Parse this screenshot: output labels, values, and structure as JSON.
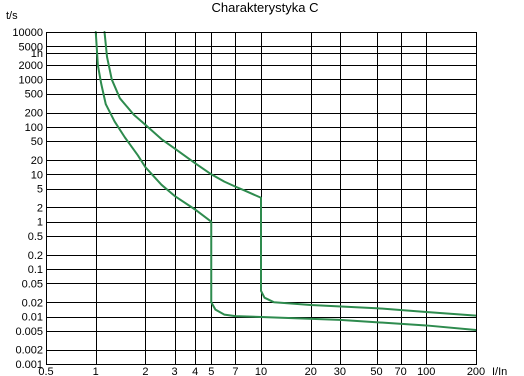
{
  "chart_data": {
    "type": "line",
    "title": "Charakterystyka C",
    "ylabel": "t/s",
    "xlabel": "I/In",
    "x_scale": "log",
    "y_scale": "log",
    "xlim": [
      0.5,
      200
    ],
    "ylim": [
      0.001,
      10000
    ],
    "grid": true,
    "legend": "none",
    "line_color": "#2e8b4e",
    "x_gridlines": [
      0.5,
      1,
      2,
      3,
      4,
      5,
      7,
      10,
      20,
      30,
      50,
      70,
      100,
      200
    ],
    "y_gridlines": [
      0.001,
      0.002,
      0.005,
      0.01,
      0.02,
      0.05,
      0.1,
      0.2,
      0.5,
      1,
      2,
      5,
      10,
      20,
      50,
      100,
      200,
      500,
      1000,
      2000,
      3600,
      5000,
      10000
    ],
    "x_ticks": [
      {
        "value": 0.5,
        "label": "0.5"
      },
      {
        "value": 1,
        "label": "1"
      },
      {
        "value": 2,
        "label": "2"
      },
      {
        "value": 3,
        "label": "3"
      },
      {
        "value": 4,
        "label": "4"
      },
      {
        "value": 5,
        "label": "5"
      },
      {
        "value": 7,
        "label": "7"
      },
      {
        "value": 10,
        "label": "10"
      },
      {
        "value": 20,
        "label": "20"
      },
      {
        "value": 30,
        "label": "30"
      },
      {
        "value": 50,
        "label": "50"
      },
      {
        "value": 70,
        "label": "70"
      },
      {
        "value": 100,
        "label": "100"
      },
      {
        "value": 200,
        "label": "200"
      }
    ],
    "y_ticks": [
      {
        "value": 10000,
        "label": "10000"
      },
      {
        "value": 5000,
        "label": "5000"
      },
      {
        "value": 3600,
        "label": "1h"
      },
      {
        "value": 2000,
        "label": "2000"
      },
      {
        "value": 1000,
        "label": "1000"
      },
      {
        "value": 500,
        "label": "500"
      },
      {
        "value": 200,
        "label": "200"
      },
      {
        "value": 100,
        "label": "100"
      },
      {
        "value": 50,
        "label": "50"
      },
      {
        "value": 20,
        "label": "20"
      },
      {
        "value": 10,
        "label": "10"
      },
      {
        "value": 5,
        "label": "5"
      },
      {
        "value": 2,
        "label": "2"
      },
      {
        "value": 1,
        "label": "1"
      },
      {
        "value": 0.5,
        "label": "0.5"
      },
      {
        "value": 0.2,
        "label": "0.2"
      },
      {
        "value": 0.1,
        "label": "0.1"
      },
      {
        "value": 0.05,
        "label": "0.05"
      },
      {
        "value": 0.02,
        "label": "0.02"
      },
      {
        "value": 0.01,
        "label": "0.01"
      },
      {
        "value": 0.005,
        "label": "0.005"
      },
      {
        "value": 0.002,
        "label": "0.002"
      },
      {
        "value": 0.001,
        "label": "0.001"
      }
    ],
    "series": [
      {
        "points": [
          [
            1.0,
            10000
          ],
          [
            1.03,
            2000
          ],
          [
            1.08,
            800
          ],
          [
            1.15,
            300
          ],
          [
            1.3,
            130
          ],
          [
            1.5,
            60
          ],
          [
            1.8,
            25
          ],
          [
            2.0,
            14
          ],
          [
            2.5,
            6
          ],
          [
            3.0,
            3.5
          ],
          [
            4.0,
            1.8
          ],
          [
            5.0,
            1.0
          ],
          [
            5.0,
            0.02
          ],
          [
            5.3,
            0.014
          ],
          [
            6.0,
            0.011
          ],
          [
            7.0,
            0.0102
          ],
          [
            10.0,
            0.0098
          ],
          [
            30,
            0.0085
          ],
          [
            100,
            0.0065
          ],
          [
            200,
            0.0052
          ]
        ]
      },
      {
        "points": [
          [
            1.13,
            10000
          ],
          [
            1.17,
            3000
          ],
          [
            1.25,
            1000
          ],
          [
            1.4,
            400
          ],
          [
            1.7,
            180
          ],
          [
            2.0,
            110
          ],
          [
            2.5,
            55
          ],
          [
            3.0,
            35
          ],
          [
            4.0,
            17
          ],
          [
            5.0,
            10
          ],
          [
            6.0,
            7
          ],
          [
            7.0,
            5.5
          ],
          [
            8.0,
            4.5
          ],
          [
            10.0,
            3.2
          ],
          [
            10.0,
            0.035
          ],
          [
            10.5,
            0.025
          ],
          [
            12.0,
            0.02
          ],
          [
            20.0,
            0.0175
          ],
          [
            50,
            0.015
          ],
          [
            100,
            0.0125
          ],
          [
            200,
            0.0105
          ]
        ]
      }
    ]
  }
}
